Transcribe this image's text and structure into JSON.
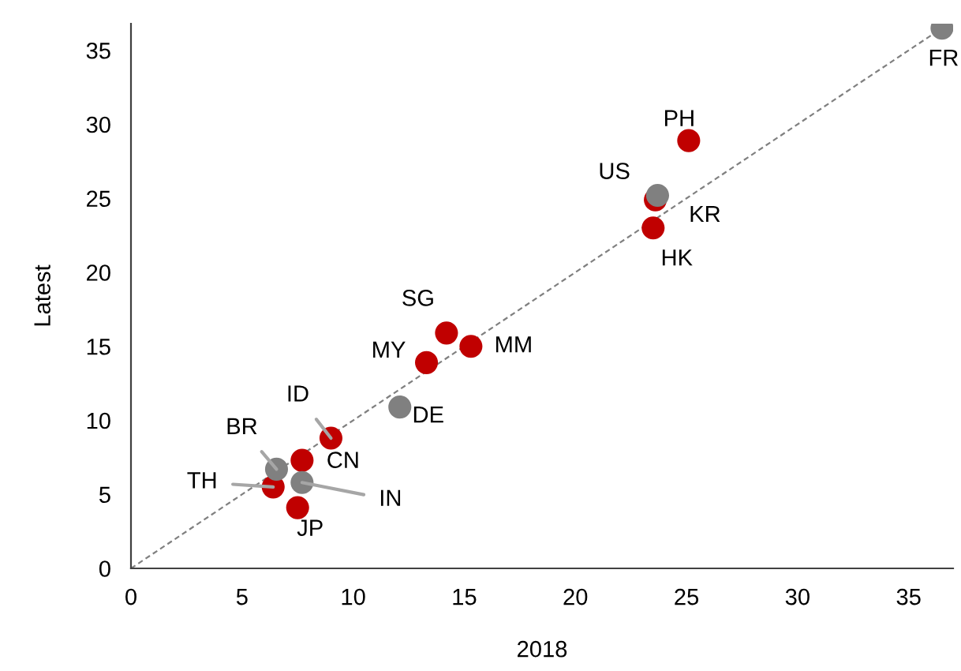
{
  "chart_data": {
    "type": "scatter",
    "xlabel": "2018",
    "ylabel": "Latest",
    "xlim": [
      0,
      37
    ],
    "ylim": [
      0,
      36.8
    ],
    "xticks": [
      0,
      5,
      10,
      15,
      20,
      25,
      30,
      35
    ],
    "yticks": [
      0,
      5,
      10,
      15,
      20,
      25,
      30,
      35
    ],
    "grid": false,
    "marker": "circle",
    "series": [
      {
        "color": "#c00000",
        "x": [
          25.1,
          23.6,
          23.5,
          14.2,
          13.3,
          15.3,
          9.0,
          7.7,
          6.4,
          7.5
        ],
        "values": [
          28.9,
          24.9,
          23.0,
          15.9,
          13.9,
          15.0,
          8.8,
          7.3,
          5.5,
          4.1
        ]
      },
      {
        "color": "#808080",
        "x": [
          36.5,
          23.7,
          12.1,
          6.55,
          7.7
        ],
        "values": [
          36.5,
          25.2,
          10.9,
          6.7,
          5.8
        ]
      },
      {
        "type": "line",
        "color": "#808080",
        "line_style": "dashed",
        "marker": "none",
        "x": [
          0,
          36.5
        ],
        "values": [
          0,
          36.5
        ]
      }
    ],
    "annotations": [
      {
        "text": "FR",
        "x": 36.5,
        "y": 36.5
      },
      {
        "text": "PH",
        "x": 25.1,
        "y": 28.9
      },
      {
        "text": "US",
        "x": 23.6,
        "y": 24.9
      },
      {
        "text": "KR",
        "x": 23.7,
        "y": 25.2
      },
      {
        "text": "HK",
        "x": 23.5,
        "y": 23.0
      },
      {
        "text": "SG",
        "x": 14.2,
        "y": 15.9
      },
      {
        "text": "MY",
        "x": 13.3,
        "y": 13.9
      },
      {
        "text": "MM",
        "x": 15.3,
        "y": 15.0
      },
      {
        "text": "DE",
        "x": 12.1,
        "y": 10.9
      },
      {
        "text": "ID",
        "x": 9.0,
        "y": 8.8
      },
      {
        "text": "CN",
        "x": 7.7,
        "y": 7.3
      },
      {
        "text": "BR",
        "x": 6.55,
        "y": 6.7
      },
      {
        "text": "TH",
        "x": 6.4,
        "y": 5.5
      },
      {
        "text": "IN",
        "x": 7.7,
        "y": 5.8
      },
      {
        "text": "JP",
        "x": 7.5,
        "y": 4.1
      }
    ]
  }
}
